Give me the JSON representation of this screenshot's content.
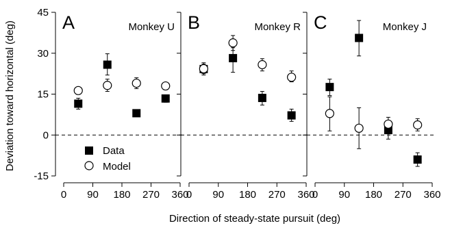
{
  "chart_data": [
    {
      "type": "scatter",
      "panel_letter": "A",
      "panel_title": "Monkey U",
      "xlabel": "",
      "ylabel": "Deviation toward horizontal (deg)",
      "xlim": [
        0,
        360
      ],
      "ylim": [
        -15,
        45
      ],
      "x_ticks": [
        0,
        90,
        180,
        270,
        360
      ],
      "y_ticks": [
        -15,
        0,
        15,
        30,
        45
      ],
      "reference_line_y": 0,
      "series": [
        {
          "name": "Data",
          "marker": "filled-square",
          "points": [
            {
              "x": 45,
              "y": 11.5,
              "err_low": 9.5,
              "err_high": 13.5
            },
            {
              "x": 135,
              "y": 25.8,
              "err_low": 22.0,
              "err_high": 29.8
            },
            {
              "x": 225,
              "y": 8.0,
              "err_low": 7.0,
              "err_high": 9.0
            },
            {
              "x": 315,
              "y": 13.4,
              "err_low": 12.0,
              "err_high": 14.5
            }
          ]
        },
        {
          "name": "Model",
          "marker": "open-circle",
          "points": [
            {
              "x": 45,
              "y": 16.3,
              "err_low": 15.5,
              "err_high": 17.0
            },
            {
              "x": 135,
              "y": 18.2,
              "err_low": 16.0,
              "err_high": 20.5
            },
            {
              "x": 225,
              "y": 19.0,
              "err_low": 17.0,
              "err_high": 21.0
            },
            {
              "x": 315,
              "y": 18.0,
              "err_low": 17.0,
              "err_high": 19.0
            }
          ]
        }
      ]
    },
    {
      "type": "scatter",
      "panel_letter": "B",
      "panel_title": "Monkey R",
      "xlabel": "Direction of steady-state pursuit (deg)",
      "ylabel": "",
      "xlim": [
        0,
        360
      ],
      "ylim": [
        -15,
        45
      ],
      "x_ticks": [
        0,
        90,
        180,
        270,
        360
      ],
      "y_ticks": [
        -15,
        0,
        15,
        30,
        45
      ],
      "reference_line_y": 0,
      "series": [
        {
          "name": "Data",
          "marker": "filled-square",
          "points": [
            {
              "x": 45,
              "y": 24.2,
              "err_low": 22.5,
              "err_high": 26.0
            },
            {
              "x": 135,
              "y": 28.2,
              "err_low": 23.0,
              "err_high": 32.0
            },
            {
              "x": 225,
              "y": 13.6,
              "err_low": 11.0,
              "err_high": 16.0
            },
            {
              "x": 315,
              "y": 7.2,
              "err_low": 5.0,
              "err_high": 9.5
            }
          ]
        },
        {
          "name": "Model",
          "marker": "open-circle",
          "points": [
            {
              "x": 45,
              "y": 24.3,
              "err_low": 22.0,
              "err_high": 26.5
            },
            {
              "x": 135,
              "y": 33.8,
              "err_low": 31.0,
              "err_high": 36.5
            },
            {
              "x": 225,
              "y": 25.8,
              "err_low": 23.5,
              "err_high": 28.0
            },
            {
              "x": 315,
              "y": 21.2,
              "err_low": 19.5,
              "err_high": 23.5
            }
          ]
        }
      ]
    },
    {
      "type": "scatter",
      "panel_letter": "C",
      "panel_title": "Monkey J",
      "xlabel": "",
      "ylabel": "",
      "xlim": [
        0,
        360
      ],
      "ylim": [
        -15,
        45
      ],
      "x_ticks": [
        0,
        90,
        180,
        270,
        360
      ],
      "y_ticks": [
        -15,
        0,
        15,
        30,
        45
      ],
      "reference_line_y": 0,
      "series": [
        {
          "name": "Data",
          "marker": "filled-square",
          "points": [
            {
              "x": 45,
              "y": 17.6,
              "err_low": 14.5,
              "err_high": 20.5
            },
            {
              "x": 135,
              "y": 35.6,
              "err_low": 29.0,
              "err_high": 42.0
            },
            {
              "x": 225,
              "y": 1.8,
              "err_low": -1.5,
              "err_high": 4.5
            },
            {
              "x": 315,
              "y": -9.0,
              "err_low": -11.5,
              "err_high": -6.5
            }
          ]
        },
        {
          "name": "Model",
          "marker": "open-circle",
          "points": [
            {
              "x": 45,
              "y": 7.9,
              "err_low": 1.5,
              "err_high": 14.0
            },
            {
              "x": 135,
              "y": 2.5,
              "err_low": -5.0,
              "err_high": 10.0
            },
            {
              "x": 225,
              "y": 4.0,
              "err_low": 1.5,
              "err_high": 6.5
            },
            {
              "x": 315,
              "y": 3.7,
              "err_low": 1.5,
              "err_high": 6.0
            }
          ]
        }
      ]
    }
  ],
  "legend": {
    "data_label": "Data",
    "model_label": "Model",
    "placement": "lower-left of panel A"
  }
}
